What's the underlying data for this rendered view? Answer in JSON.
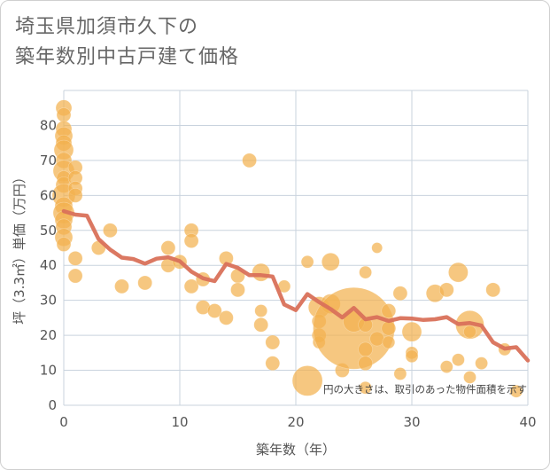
{
  "title": {
    "line1": "埼玉県加須市久下の",
    "line2": "築年数別中古戸建て価格"
  },
  "chart_data": {
    "type": "scatter",
    "title": "埼玉県加須市久下の築年数別中古戸建て価格",
    "xlabel": "築年数（年）",
    "ylabel": "坪（3.3㎡）単価（万円）",
    "xlim": [
      0,
      40
    ],
    "ylim": [
      0,
      90
    ],
    "xticks": [
      0,
      10,
      20,
      30,
      40
    ],
    "yticks": [
      0,
      10,
      20,
      30,
      40,
      50,
      60,
      70,
      80
    ],
    "grid": true,
    "note": "円の大きさは、取引のあった物件面積を示す",
    "colors": {
      "bubble": "#f2b24f",
      "line": "#d9715a",
      "grid": "#c9d3de"
    },
    "bubbles": [
      {
        "x": 0,
        "y": 85,
        "s": 9
      },
      {
        "x": 0,
        "y": 83,
        "s": 8
      },
      {
        "x": 0,
        "y": 79,
        "s": 9
      },
      {
        "x": 0,
        "y": 77,
        "s": 10
      },
      {
        "x": 0,
        "y": 75,
        "s": 9
      },
      {
        "x": 0,
        "y": 73,
        "s": 11
      },
      {
        "x": 0,
        "y": 70,
        "s": 9
      },
      {
        "x": 0,
        "y": 67,
        "s": 12
      },
      {
        "x": 0,
        "y": 65,
        "s": 8
      },
      {
        "x": 0,
        "y": 63,
        "s": 9
      },
      {
        "x": 0,
        "y": 60,
        "s": 13
      },
      {
        "x": 0,
        "y": 57,
        "s": 10
      },
      {
        "x": 0,
        "y": 55,
        "s": 12
      },
      {
        "x": 0,
        "y": 53,
        "s": 10
      },
      {
        "x": 0,
        "y": 51,
        "s": 9
      },
      {
        "x": 0,
        "y": 48,
        "s": 10
      },
      {
        "x": 0,
        "y": 46,
        "s": 8
      },
      {
        "x": 1,
        "y": 68,
        "s": 8
      },
      {
        "x": 1,
        "y": 65,
        "s": 8
      },
      {
        "x": 1,
        "y": 62,
        "s": 8
      },
      {
        "x": 1,
        "y": 60,
        "s": 8
      },
      {
        "x": 1,
        "y": 42,
        "s": 8
      },
      {
        "x": 1,
        "y": 37,
        "s": 8
      },
      {
        "x": 3,
        "y": 45,
        "s": 8
      },
      {
        "x": 4,
        "y": 50,
        "s": 8
      },
      {
        "x": 5,
        "y": 34,
        "s": 8
      },
      {
        "x": 7,
        "y": 35,
        "s": 8
      },
      {
        "x": 9,
        "y": 45,
        "s": 8
      },
      {
        "x": 9,
        "y": 40,
        "s": 8
      },
      {
        "x": 10,
        "y": 41,
        "s": 8
      },
      {
        "x": 11,
        "y": 50,
        "s": 8
      },
      {
        "x": 11,
        "y": 47,
        "s": 8
      },
      {
        "x": 11,
        "y": 34,
        "s": 8
      },
      {
        "x": 12,
        "y": 36,
        "s": 8
      },
      {
        "x": 12,
        "y": 28,
        "s": 8
      },
      {
        "x": 13,
        "y": 27,
        "s": 8
      },
      {
        "x": 14,
        "y": 42,
        "s": 8
      },
      {
        "x": 14,
        "y": 25,
        "s": 8
      },
      {
        "x": 15,
        "y": 37,
        "s": 8
      },
      {
        "x": 15,
        "y": 33,
        "s": 8
      },
      {
        "x": 16,
        "y": 70,
        "s": 8
      },
      {
        "x": 17,
        "y": 38,
        "s": 10
      },
      {
        "x": 17,
        "y": 27,
        "s": 7
      },
      {
        "x": 17,
        "y": 23,
        "s": 8
      },
      {
        "x": 18,
        "y": 18,
        "s": 8
      },
      {
        "x": 18,
        "y": 12,
        "s": 8
      },
      {
        "x": 19,
        "y": 34,
        "s": 7
      },
      {
        "x": 21,
        "y": 41,
        "s": 7
      },
      {
        "x": 21,
        "y": 7,
        "s": 17
      },
      {
        "x": 22,
        "y": 28,
        "s": 12
      },
      {
        "x": 22,
        "y": 24,
        "s": 8
      },
      {
        "x": 22,
        "y": 20,
        "s": 8
      },
      {
        "x": 22,
        "y": 18,
        "s": 7
      },
      {
        "x": 23,
        "y": 29,
        "s": 11
      },
      {
        "x": 23,
        "y": 41,
        "s": 10
      },
      {
        "x": 24,
        "y": 10,
        "s": 8
      },
      {
        "x": 25,
        "y": 22,
        "s": 46
      },
      {
        "x": 25,
        "y": 24,
        "s": 12
      },
      {
        "x": 26,
        "y": 38,
        "s": 7
      },
      {
        "x": 26,
        "y": 23,
        "s": 8
      },
      {
        "x": 26,
        "y": 16,
        "s": 8
      },
      {
        "x": 26,
        "y": 12,
        "s": 8
      },
      {
        "x": 26,
        "y": 5,
        "s": 7
      },
      {
        "x": 27,
        "y": 45,
        "s": 6
      },
      {
        "x": 27,
        "y": 19,
        "s": 8
      },
      {
        "x": 28,
        "y": 27,
        "s": 8
      },
      {
        "x": 28,
        "y": 22,
        "s": 8
      },
      {
        "x": 28,
        "y": 18,
        "s": 7
      },
      {
        "x": 29,
        "y": 32,
        "s": 8
      },
      {
        "x": 29,
        "y": 9,
        "s": 7
      },
      {
        "x": 30,
        "y": 21,
        "s": 11
      },
      {
        "x": 30,
        "y": 15,
        "s": 7
      },
      {
        "x": 30,
        "y": 14,
        "s": 7
      },
      {
        "x": 32,
        "y": 32,
        "s": 10
      },
      {
        "x": 33,
        "y": 33,
        "s": 8
      },
      {
        "x": 33,
        "y": 11,
        "s": 7
      },
      {
        "x": 34,
        "y": 38,
        "s": 11
      },
      {
        "x": 34,
        "y": 13,
        "s": 7
      },
      {
        "x": 35,
        "y": 23,
        "s": 16
      },
      {
        "x": 35,
        "y": 21,
        "s": 7
      },
      {
        "x": 35,
        "y": 8,
        "s": 7
      },
      {
        "x": 36,
        "y": 12,
        "s": 7
      },
      {
        "x": 37,
        "y": 33,
        "s": 8
      },
      {
        "x": 38,
        "y": 16,
        "s": 7
      },
      {
        "x": 39,
        "y": 4,
        "s": 7
      }
    ],
    "trend": {
      "x": [
        0,
        1,
        2,
        3,
        4,
        5,
        6,
        7,
        8,
        9,
        10,
        11,
        12,
        13,
        14,
        15,
        16,
        17,
        18,
        19,
        20,
        21,
        22,
        23,
        24,
        25,
        26,
        27,
        28,
        29,
        30,
        31,
        32,
        33,
        34,
        35,
        36,
        37,
        38,
        39,
        40
      ],
      "y": [
        55.5,
        54.5,
        54.2,
        47.5,
        44.5,
        42.2,
        41.8,
        40.5,
        41.9,
        42.3,
        41.2,
        38.2,
        36.3,
        35.5,
        40.4,
        39.3,
        37.2,
        37.2,
        36.8,
        28.8,
        27.2,
        31.8,
        29.5,
        27.5,
        25.1,
        27.8,
        24.6,
        25.2,
        24.1,
        24.9,
        24.8,
        24.4,
        24.6,
        25.2,
        23.2,
        23.5,
        22.8,
        18.0,
        16.2,
        16.6,
        12.8
      ]
    }
  }
}
